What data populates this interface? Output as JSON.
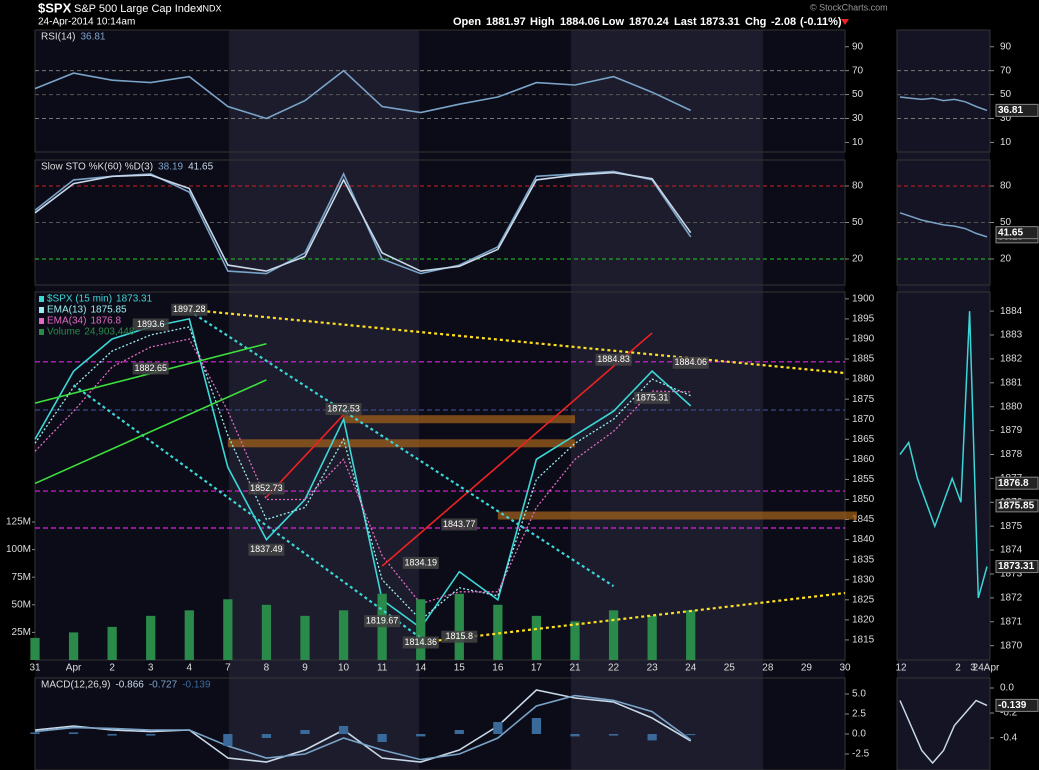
{
  "header": {
    "symbol": "$SPX",
    "name": "S&P 500 Large Cap Index",
    "exchange": "INDX",
    "datetime": "24-Apr-2014 10:14am",
    "open_label": "Open",
    "open": 1881.97,
    "high_label": "High",
    "high": 1884.06,
    "low_label": "Low",
    "low": 1870.24,
    "last_label": "Last",
    "last": 1873.31,
    "chg_label": "Chg",
    "chg": -2.08,
    "chg_pct": "(-0.11%)",
    "source": "© StockCharts.com"
  },
  "chart_data": [
    {
      "type": "line",
      "title": "RSI(14)",
      "ylim": [
        2,
        104
      ],
      "yticks": [
        10,
        30,
        50,
        70,
        90
      ],
      "ref_lines": [
        {
          "value": 70,
          "color": "#777"
        },
        {
          "value": 50,
          "color": "#555"
        },
        {
          "value": 30,
          "color": "#777"
        }
      ],
      "series": [
        {
          "color": "#7aa3c8",
          "last": 36.81,
          "values": [
            55,
            68,
            62,
            60,
            65,
            40,
            30,
            45,
            70,
            40,
            35,
            42,
            48,
            60,
            58,
            65,
            52,
            36.81,
            null,
            null,
            null,
            null
          ]
        }
      ],
      "mini": {
        "values": [
          48,
          47,
          46,
          47,
          45,
          46,
          44,
          40,
          36.81
        ]
      }
    },
    {
      "type": "line",
      "title": "Slow STO %K(60) %D(3)",
      "ylim": [
        -1.4,
        101.4
      ],
      "yticks": [
        20,
        50,
        80
      ],
      "ref_lines": [
        {
          "value": 80,
          "color": "#c22"
        },
        {
          "value": 50,
          "color": "#555"
        },
        {
          "value": 20,
          "color": "#2c2"
        }
      ],
      "series": [
        {
          "color": "#7aa3c8",
          "last": 38.19,
          "values": [
            60,
            85,
            88,
            90,
            75,
            10,
            8,
            25,
            90,
            20,
            8,
            15,
            30,
            88,
            90,
            92,
            85,
            38.19,
            null,
            null,
            null,
            null
          ]
        },
        {
          "color": "#c8d8e8",
          "last": 41.65,
          "values": [
            58,
            82,
            88,
            89,
            78,
            15,
            10,
            22,
            85,
            25,
            10,
            14,
            28,
            85,
            89,
            91,
            86,
            41.65,
            null,
            null,
            null,
            null
          ]
        }
      ],
      "mini": {
        "values": [
          58,
          55,
          52,
          50,
          48,
          47,
          45,
          41,
          38.19
        ]
      }
    },
    {
      "type": "line",
      "ylim": [
        1810,
        1901.7
      ],
      "yticks": [
        1815,
        1820,
        1825,
        1830,
        1835,
        1840,
        1845,
        1850,
        1855,
        1860,
        1865,
        1870,
        1875,
        1880,
        1885,
        1890,
        1895,
        1900
      ],
      "y2lim": [
        0,
        150000000
      ],
      "y2ticks": [
        {
          "value": 25000000,
          "label": "25M"
        },
        {
          "value": 50000000,
          "label": "50M"
        },
        {
          "value": 75000000,
          "label": "75M"
        },
        {
          "value": 100000000,
          "label": "100M"
        },
        {
          "value": 125000000,
          "label": "125M"
        }
      ],
      "categories": [
        "31",
        "Apr",
        "2",
        "3",
        "4",
        "7",
        "8",
        "9",
        "10",
        "11",
        "14",
        "15",
        "16",
        "17",
        "21",
        "22",
        "23",
        "24",
        "25",
        "28",
        "29",
        "30"
      ],
      "series": [
        {
          "name": "$SPX (15 min)",
          "color": "#3cd6d6",
          "style": "line",
          "last": 1873.31,
          "values": [
            1865,
            1882,
            1890,
            1893,
            1895,
            1858,
            1840,
            1850,
            1870,
            1825,
            1818,
            1832,
            1825,
            1860,
            1866,
            1872,
            1882,
            1873.31,
            null,
            null,
            null,
            null
          ]
        },
        {
          "name": "EMA(13)",
          "color": "#9ee",
          "style": "dotted",
          "last": 1875.85,
          "values": [
            1864,
            1878,
            1887,
            1891,
            1893,
            1866,
            1845,
            1848,
            1865,
            1830,
            1820,
            1828,
            1826,
            1855,
            1864,
            1870,
            1880,
            1875.85,
            null,
            null,
            null,
            null
          ]
        },
        {
          "name": "EMA(34)",
          "color": "#e06ac0",
          "style": "dotted",
          "last": 1876.8,
          "values": [
            1862,
            1872,
            1883,
            1888,
            1890,
            1872,
            1850,
            1850,
            1860,
            1836,
            1824,
            1827,
            1827,
            1848,
            1860,
            1867,
            1877,
            1876.8,
            null,
            null,
            null,
            null
          ]
        },
        {
          "name": "Volume",
          "color": "#2a8a4a",
          "style": "bar",
          "axis": "y2",
          "last_label": "24,903,448",
          "values": [
            20000000,
            25000000,
            30000000,
            40000000,
            45000000,
            55000000,
            50000000,
            40000000,
            45000000,
            60000000,
            55000000,
            60000000,
            50000000,
            40000000,
            35000000,
            45000000,
            40000000,
            45000000,
            null,
            null,
            null,
            null
          ]
        }
      ],
      "hlines": [
        {
          "value": 1884.3,
          "color": "#e020e0"
        },
        {
          "value": 1852.1,
          "color": "#e020e0"
        },
        {
          "value": 1842.9,
          "color": "#e020e0"
        },
        {
          "value": 1872.3,
          "color": "#3a4a8a"
        }
      ],
      "bands": [
        {
          "from": 1869,
          "to": 1871,
          "start": "10",
          "end": "21",
          "color": "#a8641a"
        },
        {
          "from": 1863,
          "to": 1865,
          "start": "7",
          "end": "21",
          "color": "#a8641a"
        },
        {
          "from": 1845,
          "to": 1847,
          "start": "16",
          "color": "#a8641a"
        }
      ],
      "trendlines": [
        {
          "color": "#ffe020",
          "dash": true,
          "from": [
            "4",
            1897.28
          ],
          "to": [
            "30",
            1881.5
          ]
        },
        {
          "color": "#ffe020",
          "dash": true,
          "from": [
            "14",
            1814.36
          ],
          "to": [
            "30",
            1826.7
          ]
        },
        {
          "color": "#ee2222",
          "from": [
            "11",
            1833.4
          ],
          "to": [
            "23",
            1891.5
          ]
        },
        {
          "color": "#ee2222",
          "from": [
            "8",
            1850.6
          ],
          "to": [
            "10",
            1871.1
          ]
        },
        {
          "color": "#3cd6d6",
          "dash": true,
          "from": [
            "4",
            1897
          ],
          "to": [
            "22",
            1828.4
          ]
        },
        {
          "color": "#3cd6d6",
          "dash": true,
          "from": [
            "Apr",
            1878.5
          ],
          "to": [
            "14",
            1815.5
          ]
        },
        {
          "color": "#3ce03c",
          "from": [
            "31",
            1874
          ],
          "to": [
            "8",
            1888.8
          ]
        },
        {
          "color": "#3ce03c",
          "from": [
            "31",
            1854
          ],
          "to": [
            "8",
            1879.8
          ]
        }
      ],
      "annotations": [
        {
          "x": "4",
          "value": 1897.28
        },
        {
          "x": "3",
          "value": 1893.6
        },
        {
          "x": "3",
          "value": 1882.65
        },
        {
          "x": "10",
          "value": 1872.53
        },
        {
          "x": "8",
          "value": 1852.73
        },
        {
          "x": "8",
          "value": 1837.49
        },
        {
          "x": "15",
          "value": 1843.77
        },
        {
          "x": "14",
          "value": 1834.19
        },
        {
          "x": "11",
          "value": 1819.67
        },
        {
          "x": "14",
          "value": 1814.36
        },
        {
          "x": "15",
          "value": 1815.8
        },
        {
          "x": "22",
          "value": 1884.83
        },
        {
          "x": "24",
          "value": 1884.06
        },
        {
          "x": "23",
          "value": 1875.31
        }
      ],
      "mini": {
        "ylim": [
          1869.4,
          1884.8
        ],
        "yticks": [
          1870,
          1871,
          1872,
          1873,
          1874,
          1875,
          1876,
          1877,
          1878,
          1879,
          1880,
          1881,
          1882,
          1883,
          1884
        ],
        "categories": [
          "12",
          "2",
          "3",
          "24Apr"
        ],
        "values": [
          1878,
          1878.5,
          1877,
          1876,
          1875,
          1876,
          1877,
          1876,
          1884,
          1872,
          1873.31
        ]
      }
    },
    {
      "type": "line",
      "title": "MACD(12,26,9)",
      "ylim": [
        -4.5,
        7
      ],
      "yticks": [
        {
          "value": -2.5,
          "label": "-2.5"
        },
        {
          "value": 0,
          "label": "0.0"
        },
        {
          "value": 2.5,
          "label": "2.5"
        },
        {
          "value": 5,
          "label": "5.0"
        }
      ],
      "series": [
        {
          "color": "#c8d8e8",
          "style": "line",
          "last": -0.866,
          "values": [
            0.5,
            1,
            0.5,
            0.3,
            0.5,
            -3,
            -3.5,
            -2,
            0.5,
            -3,
            -3.5,
            -2,
            1,
            5.5,
            4.5,
            4,
            2,
            -0.866,
            null,
            null,
            null,
            null
          ]
        },
        {
          "color": "#7aa3c8",
          "style": "line",
          "last": -0.727,
          "values": [
            0.3,
            0.8,
            0.7,
            0.5,
            0.5,
            -1.5,
            -3,
            -2.5,
            -0.5,
            -2,
            -3.2,
            -2.5,
            -0.5,
            3.5,
            4.8,
            4.2,
            2.8,
            -0.727,
            null,
            null,
            null,
            null
          ]
        },
        {
          "color": "#3a6a9a",
          "style": "bar",
          "last": -0.139,
          "values": [
            0.2,
            0.2,
            -0.2,
            -0.2,
            0,
            -1.5,
            -0.5,
            0.5,
            1,
            -1,
            -0.3,
            0.5,
            1.5,
            2,
            -0.3,
            -0.2,
            -0.8,
            -0.139,
            null,
            null,
            null,
            null
          ]
        }
      ],
      "mini": {
        "ylim": [
          -0.656,
          0.08
        ],
        "yticks": [
          {
            "value": -0.4,
            "label": "-0.4"
          },
          {
            "value": -0.2,
            "label": "-0.2"
          },
          {
            "value": 0,
            "label": "0.0"
          }
        ],
        "values": [
          -0.1,
          -0.3,
          -0.5,
          -0.6,
          -0.5,
          -0.3,
          -0.2,
          -0.1,
          -0.139
        ]
      }
    }
  ]
}
